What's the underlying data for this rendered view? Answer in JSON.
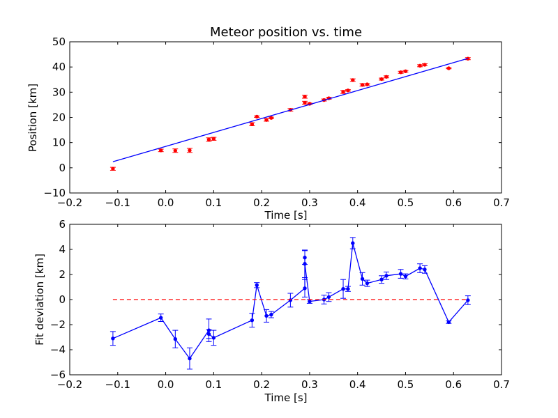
{
  "chart_data": [
    {
      "type": "scatter",
      "title": "Meteor position vs. time",
      "xlabel": "Time [s]",
      "ylabel": "Position [km]",
      "xlim": [
        -0.2,
        0.7
      ],
      "ylim": [
        -10,
        50
      ],
      "xticks": [
        -0.2,
        -0.1,
        0.0,
        0.1,
        0.2,
        0.3,
        0.4,
        0.5,
        0.6,
        0.7
      ],
      "xtick_labels": [
        "−0.2",
        "−0.1",
        "0.0",
        "0.1",
        "0.2",
        "0.3",
        "0.4",
        "0.5",
        "0.6",
        "0.7"
      ],
      "yticks": [
        -10,
        0,
        10,
        20,
        30,
        40,
        50
      ],
      "ytick_labels": [
        "−10",
        "0",
        "10",
        "20",
        "30",
        "40",
        "50"
      ],
      "grid": false,
      "series": [
        {
          "kind": "points_with_errorbars",
          "color": "#ff0000",
          "points": [
            {
              "x": -0.11,
              "y": -0.4,
              "err": 0.6
            },
            {
              "x": -0.01,
              "y": 6.9,
              "err": 0.5
            },
            {
              "x": 0.02,
              "y": 6.8,
              "err": 0.7
            },
            {
              "x": 0.05,
              "y": 6.9,
              "err": 0.8
            },
            {
              "x": 0.09,
              "y": 11.2,
              "err": 0.7
            },
            {
              "x": 0.1,
              "y": 11.5,
              "err": 0.6
            },
            {
              "x": 0.18,
              "y": 17.3,
              "err": 0.6
            },
            {
              "x": 0.19,
              "y": 20.3,
              "err": 0.3
            },
            {
              "x": 0.21,
              "y": 19.0,
              "err": 0.5
            },
            {
              "x": 0.22,
              "y": 19.8,
              "err": 0.3
            },
            {
              "x": 0.26,
              "y": 23.0,
              "err": 0.5
            },
            {
              "x": 0.29,
              "y": 25.8,
              "err": 0.6
            },
            {
              "x": 0.29,
              "y": 28.2,
              "err": 0.6
            },
            {
              "x": 0.3,
              "y": 25.4,
              "err": 0.3
            },
            {
              "x": 0.33,
              "y": 26.9,
              "err": 0.4
            },
            {
              "x": 0.34,
              "y": 27.6,
              "err": 0.4
            },
            {
              "x": 0.37,
              "y": 30.1,
              "err": 0.6
            },
            {
              "x": 0.38,
              "y": 30.7,
              "err": 0.3
            },
            {
              "x": 0.39,
              "y": 34.8,
              "err": 0.5
            },
            {
              "x": 0.41,
              "y": 32.9,
              "err": 0.5
            },
            {
              "x": 0.42,
              "y": 33.1,
              "err": 0.3
            },
            {
              "x": 0.45,
              "y": 35.2,
              "err": 0.4
            },
            {
              "x": 0.46,
              "y": 36.1,
              "err": 0.4
            },
            {
              "x": 0.49,
              "y": 37.9,
              "err": 0.4
            },
            {
              "x": 0.5,
              "y": 38.3,
              "err": 0.3
            },
            {
              "x": 0.53,
              "y": 40.5,
              "err": 0.4
            },
            {
              "x": 0.54,
              "y": 40.9,
              "err": 0.4
            },
            {
              "x": 0.59,
              "y": 39.5,
              "err": 0.2
            },
            {
              "x": 0.63,
              "y": 43.3,
              "err": 0.4
            }
          ]
        },
        {
          "kind": "line",
          "color": "#0000ff",
          "x": [
            -0.11,
            0.63
          ],
          "y": [
            2.4,
            43.4
          ]
        }
      ]
    },
    {
      "type": "line",
      "title": "",
      "xlabel": "Time [s]",
      "ylabel": "Fit deviation [km]",
      "xlim": [
        -0.2,
        0.7
      ],
      "ylim": [
        -6,
        6
      ],
      "xticks": [
        -0.2,
        -0.1,
        0.0,
        0.1,
        0.2,
        0.3,
        0.4,
        0.5,
        0.6,
        0.7
      ],
      "xtick_labels": [
        "−0.2",
        "−0.1",
        "0.0",
        "0.1",
        "0.2",
        "0.3",
        "0.4",
        "0.5",
        "0.6",
        "0.7"
      ],
      "yticks": [
        -6,
        -4,
        -2,
        0,
        2,
        4,
        6
      ],
      "ytick_labels": [
        "−6",
        "−4",
        "−2",
        "0",
        "2",
        "4",
        "6"
      ],
      "grid": false,
      "series": [
        {
          "kind": "line_with_errorbars",
          "color": "#0000ff",
          "points": [
            {
              "x": -0.11,
              "y": -3.1,
              "err": 0.55
            },
            {
              "x": -0.01,
              "y": -1.45,
              "err": 0.3
            },
            {
              "x": 0.02,
              "y": -3.15,
              "err": 0.7
            },
            {
              "x": 0.05,
              "y": -4.7,
              "err": 0.85
            },
            {
              "x": 0.09,
              "y": -2.45,
              "err": 0.9
            },
            {
              "x": 0.09,
              "y": -2.75,
              "err": 0.35
            },
            {
              "x": 0.1,
              "y": -3.05,
              "err": 0.6
            },
            {
              "x": 0.18,
              "y": -1.65,
              "err": 0.55
            },
            {
              "x": 0.19,
              "y": 1.15,
              "err": 0.2
            },
            {
              "x": 0.21,
              "y": -1.3,
              "err": 0.5
            },
            {
              "x": 0.22,
              "y": -1.2,
              "err": 0.25
            },
            {
              "x": 0.26,
              "y": -0.05,
              "err": 0.55
            },
            {
              "x": 0.29,
              "y": 0.9,
              "err": 0.7
            },
            {
              "x": 0.29,
              "y": 3.35,
              "err": 0.55
            },
            {
              "x": 0.29,
              "y": 2.85,
              "err": 1.1
            },
            {
              "x": 0.3,
              "y": -0.15,
              "err": 0.15
            },
            {
              "x": 0.33,
              "y": 0.0,
              "err": 0.35
            },
            {
              "x": 0.34,
              "y": 0.2,
              "err": 0.35
            },
            {
              "x": 0.37,
              "y": 0.85,
              "err": 0.75
            },
            {
              "x": 0.38,
              "y": 0.85,
              "err": 0.2
            },
            {
              "x": 0.39,
              "y": 4.5,
              "err": 0.45
            },
            {
              "x": 0.41,
              "y": 1.65,
              "err": 0.5
            },
            {
              "x": 0.42,
              "y": 1.3,
              "err": 0.25
            },
            {
              "x": 0.45,
              "y": 1.6,
              "err": 0.3
            },
            {
              "x": 0.46,
              "y": 1.9,
              "err": 0.3
            },
            {
              "x": 0.49,
              "y": 2.05,
              "err": 0.35
            },
            {
              "x": 0.5,
              "y": 1.85,
              "err": 0.2
            },
            {
              "x": 0.53,
              "y": 2.5,
              "err": 0.35
            },
            {
              "x": 0.54,
              "y": 2.4,
              "err": 0.3
            },
            {
              "x": 0.59,
              "y": -1.8,
              "err": 0.1
            },
            {
              "x": 0.63,
              "y": -0.05,
              "err": 0.35
            }
          ]
        },
        {
          "kind": "dashed_line",
          "color": "#ff0000",
          "x": [
            -0.11,
            0.63
          ],
          "y": [
            0,
            0
          ]
        }
      ]
    }
  ]
}
